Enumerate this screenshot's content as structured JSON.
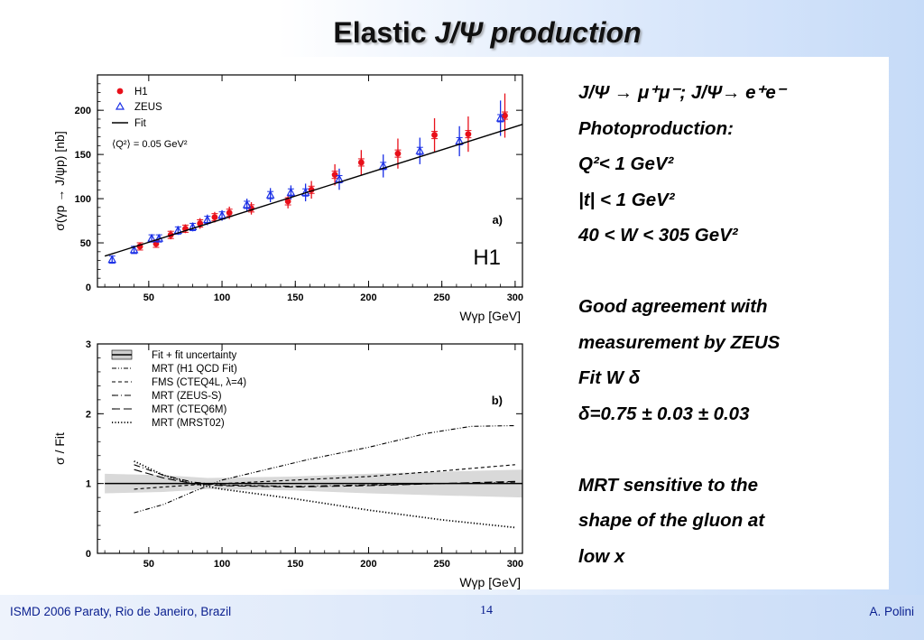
{
  "slide": {
    "title_plain": "Elastic ",
    "title_italic": "J/Ψ production",
    "text_lines": [
      "J/Ψ  → μ⁺μ⁻; J/Ψ→ e⁺e⁻",
      "Photoproduction:",
      "Q²< 1 GeV²",
      "|t| < 1 GeV²",
      "40 < W < 305 GeV²",
      "",
      "Good agreement with",
      "measurement by ZEUS",
      "Fit W δ",
      "δ=0.75 ± 0.03 ±  0.03",
      "",
      "MRT sensitive to the",
      "shape of the gluon at",
      "low x"
    ],
    "footer_left": "ISMD 2006 Paraty, Rio de Janeiro, Brazil",
    "footer_center": "14",
    "footer_right": "A. Polini"
  },
  "chart_data": [
    {
      "type": "scatter",
      "panel_label": "a)",
      "watermark": "H1",
      "ylabel": "σ(γp → J/ψp) [nb]",
      "xlabel": "Wγp [GeV]",
      "xlim": [
        15,
        305
      ],
      "ylim": [
        0,
        240
      ],
      "xticks": [
        50,
        100,
        150,
        200,
        250,
        300
      ],
      "yticks": [
        0,
        50,
        100,
        150,
        200
      ],
      "legend": [
        "H1",
        "ZEUS",
        "Fit"
      ],
      "legend_note": "⟨Q²⟩ = 0.05 GeV²",
      "colors": {
        "H1": "#e8101a",
        "ZEUS": "#1a2fe6",
        "Fit": "#000000"
      },
      "series": [
        {
          "name": "H1",
          "marker": "circle",
          "x": [
            44,
            55,
            65,
            75,
            85,
            95,
            105,
            120,
            145,
            161,
            177,
            195,
            220,
            245,
            268,
            293
          ],
          "y": [
            46,
            49,
            59,
            66,
            72,
            79,
            84,
            89,
            97,
            110,
            127,
            141,
            151,
            172,
            173,
            194
          ],
          "err": [
            4,
            4,
            5,
            5,
            6,
            6,
            7,
            7,
            8,
            10,
            12,
            14,
            17,
            19,
            20,
            25
          ]
        },
        {
          "name": "ZEUS",
          "marker": "triangle",
          "x": [
            25,
            40,
            52,
            57,
            70,
            80,
            90,
            100,
            117,
            133,
            147,
            157,
            180,
            210,
            235,
            262,
            290
          ],
          "y": [
            31,
            42,
            55,
            55,
            64,
            68,
            76,
            81,
            93,
            104,
            107,
            107,
            122,
            137,
            154,
            165,
            191
          ],
          "err": [
            4,
            4,
            4,
            4,
            5,
            5,
            6,
            6,
            7,
            8,
            8,
            10,
            12,
            13,
            15,
            17,
            20
          ]
        },
        {
          "name": "Fit",
          "type": "line",
          "x": [
            20,
            305
          ],
          "y": [
            35,
            184
          ]
        }
      ]
    },
    {
      "type": "line",
      "panel_label": "b)",
      "ylabel": "σ / Fit",
      "xlabel": "Wγp [GeV]",
      "xlim": [
        15,
        305
      ],
      "ylim": [
        0,
        3
      ],
      "xticks": [
        50,
        100,
        150,
        200,
        250,
        300
      ],
      "yticks": [
        0,
        1,
        2,
        3
      ],
      "band": {
        "x": [
          20,
          60,
          90,
          150,
          200,
          250,
          305
        ],
        "lo": [
          0.86,
          0.88,
          0.92,
          0.9,
          0.86,
          0.83,
          0.8
        ],
        "hi": [
          1.14,
          1.12,
          1.08,
          1.1,
          1.14,
          1.17,
          1.2
        ]
      },
      "series": [
        {
          "name": "Fit + fit uncertainty",
          "style": "band",
          "x": [
            20,
            305
          ],
          "y": [
            1,
            1
          ]
        },
        {
          "name": "MRT (H1 QCD Fit)",
          "style": "dash-dot-dot",
          "x": [
            40,
            60,
            80,
            100,
            130,
            160,
            200,
            240,
            270,
            300
          ],
          "y": [
            0.58,
            0.7,
            0.88,
            1.05,
            1.2,
            1.35,
            1.52,
            1.72,
            1.82,
            1.83
          ]
        },
        {
          "name": "FMS (CTEQ4L, λ=4)",
          "style": "dashed",
          "x": [
            40,
            60,
            80,
            100,
            150,
            200,
            250,
            300
          ],
          "y": [
            0.92,
            0.95,
            0.98,
            1.0,
            1.05,
            1.1,
            1.18,
            1.27
          ]
        },
        {
          "name": "MRT (ZEUS-S)",
          "style": "dash-dot",
          "x": [
            40,
            60,
            80,
            100,
            150,
            200,
            250,
            300
          ],
          "y": [
            1.27,
            1.12,
            1.02,
            0.98,
            0.96,
            0.98,
            1.0,
            1.02
          ]
        },
        {
          "name": "MRT (CTEQ6M)",
          "style": "long-dash",
          "x": [
            40,
            60,
            80,
            100,
            150,
            200,
            250,
            300
          ],
          "y": [
            1.2,
            1.08,
            1.0,
            0.97,
            0.95,
            0.97,
            1.0,
            1.03
          ]
        },
        {
          "name": "MRT (MRST02)",
          "style": "dotted",
          "x": [
            40,
            60,
            80,
            100,
            150,
            200,
            250,
            300
          ],
          "y": [
            1.32,
            1.12,
            1.0,
            0.92,
            0.78,
            0.62,
            0.48,
            0.37
          ]
        }
      ]
    }
  ]
}
